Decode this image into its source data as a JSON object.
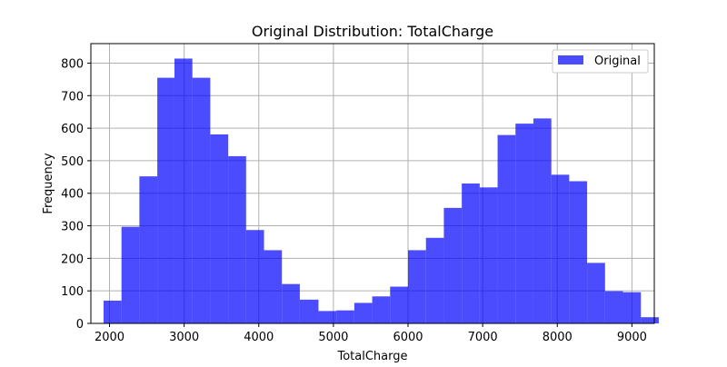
{
  "chart_data": {
    "type": "bar",
    "subtype": "histogram",
    "title": "Original Distribution: TotalCharge",
    "xlabel": "TotalCharge",
    "ylabel": "Frequency",
    "xlim": [
      1750,
      9300
    ],
    "ylim": [
      0,
      860
    ],
    "x_ticks": [
      2000,
      3000,
      4000,
      5000,
      6000,
      7000,
      8000,
      9000
    ],
    "y_ticks": [
      0,
      100,
      200,
      300,
      400,
      500,
      600,
      700,
      800
    ],
    "grid": true,
    "legend": {
      "placement": "top-right",
      "entries": [
        "Original"
      ]
    },
    "series": [
      {
        "name": "Original",
        "color": "#0000ff",
        "opacity": 0.7,
        "bin_edges": [
          1920,
          2160,
          2400,
          2640,
          2870,
          3110,
          3350,
          3590,
          3830,
          4070,
          4310,
          4550,
          4800,
          5040,
          5280,
          5520,
          5760,
          6000,
          6240,
          6480,
          6720,
          6960,
          7200,
          7440,
          7680,
          7920,
          8160,
          8400,
          8640,
          8880,
          9120,
          9360
        ],
        "values": [
          70,
          297,
          452,
          755,
          814,
          755,
          581,
          514,
          287,
          225,
          121,
          73,
          38,
          40,
          63,
          83,
          113,
          225,
          263,
          355,
          430,
          418,
          579,
          614,
          630,
          457,
          437,
          186,
          99,
          96,
          19
        ]
      }
    ]
  }
}
